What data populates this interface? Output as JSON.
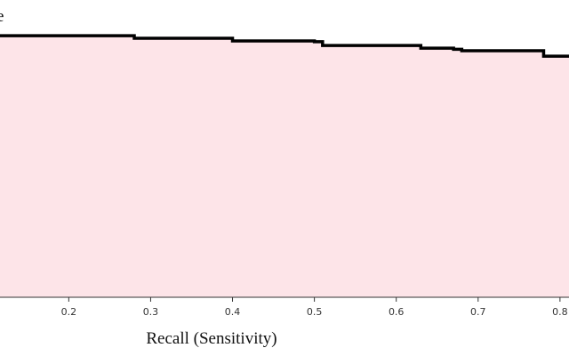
{
  "chart_data": {
    "type": "step-area",
    "title": "e",
    "x_label": "Recall (Sensitivity)",
    "x": [
      0.116,
      0.28,
      0.4,
      0.5,
      0.51,
      0.63,
      0.67,
      0.68,
      0.78,
      0.811
    ],
    "values": [
      0.907,
      0.898,
      0.889,
      0.886,
      0.873,
      0.864,
      0.86,
      0.855,
      0.836,
      0.836
    ],
    "color": "#000000",
    "fill": "#fde4e8",
    "xlim": [
      0.116,
      0.811
    ],
    "ylim": [
      0,
      1
    ],
    "xticks": [
      0.2,
      0.3,
      0.4,
      0.5,
      0.6,
      0.7,
      0.8
    ]
  }
}
